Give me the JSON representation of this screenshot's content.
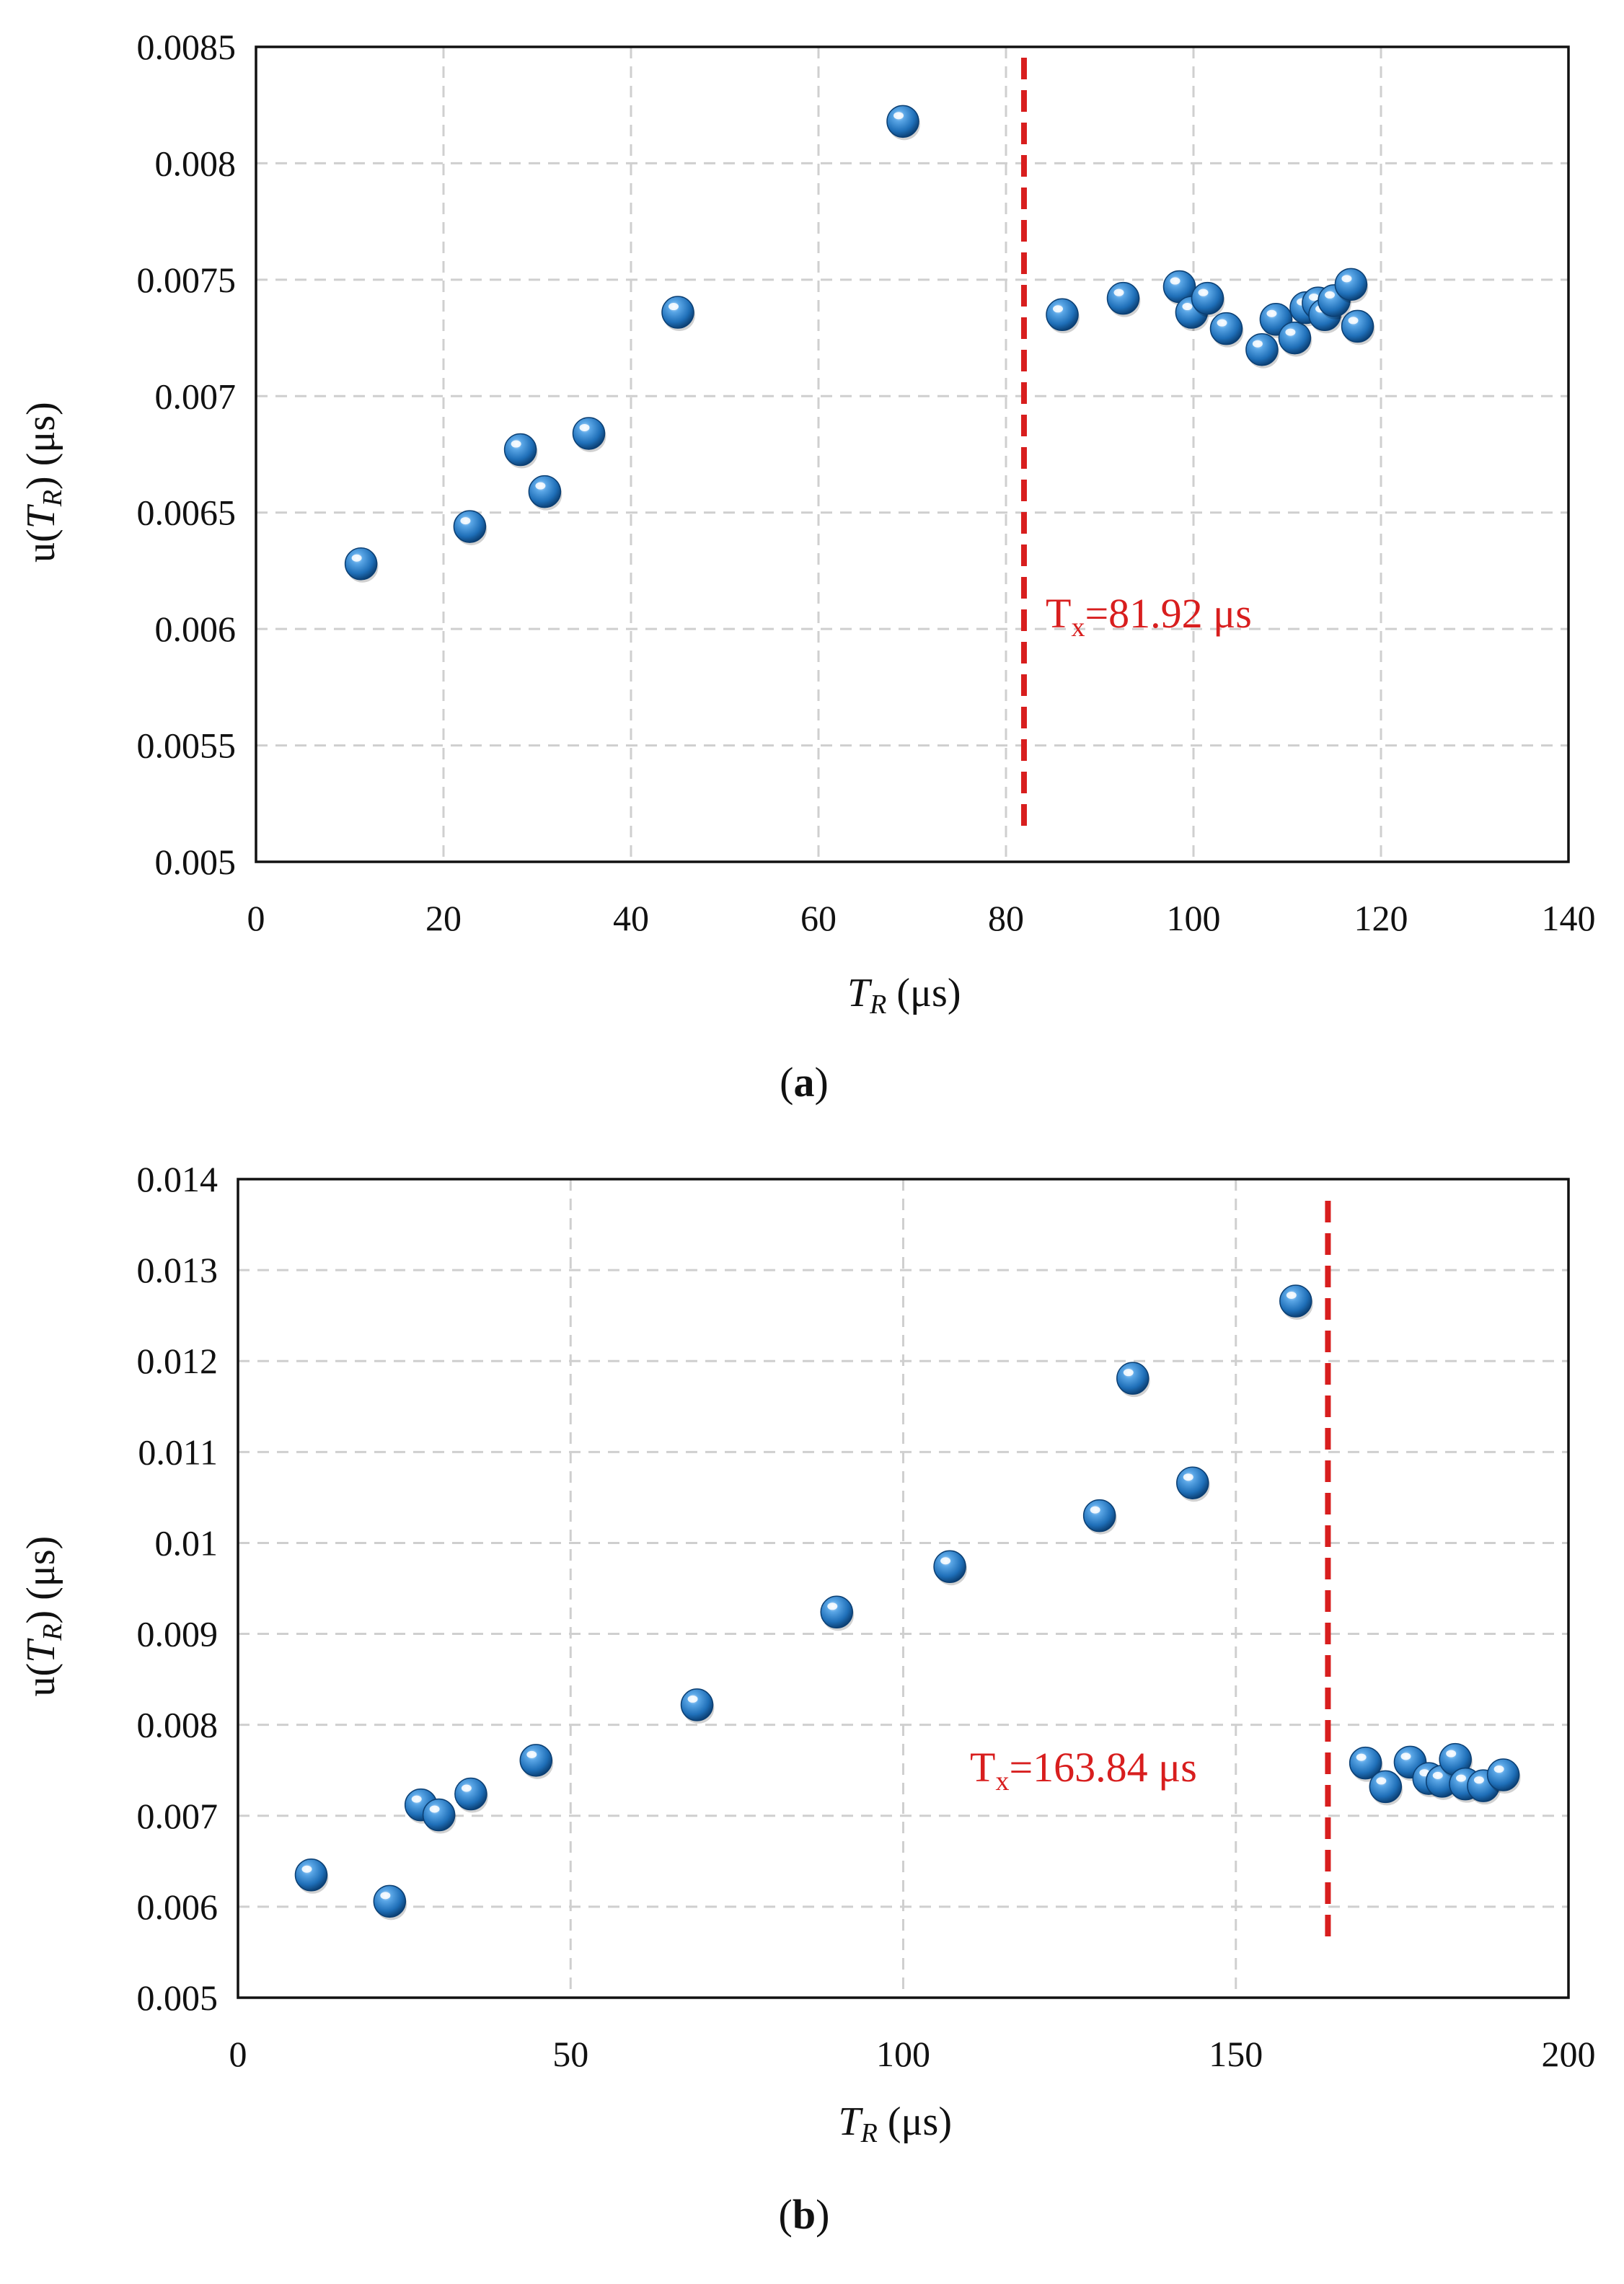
{
  "colors": {
    "marker": "#1f6fb8",
    "threshold": "#d81e1e",
    "grid": "#cfcfcf",
    "axis": "#111111"
  },
  "chart_data": [
    {
      "type": "scatter",
      "panel_label": "(a)",
      "panel_letter": "a",
      "xlabel": "T_R (μs)",
      "ylabel": "u(T_R) (μs)",
      "xlim": [
        0,
        140
      ],
      "ylim": [
        0.005,
        0.0085
      ],
      "x_ticks": [
        0,
        20,
        40,
        60,
        80,
        100,
        120,
        140
      ],
      "x_tick_labels": [
        "0",
        "20",
        "40",
        "60",
        "80",
        "100",
        "120",
        "140"
      ],
      "y_ticks": [
        0.005,
        0.0055,
        0.006,
        0.0065,
        0.007,
        0.0075,
        0.008,
        0.0085
      ],
      "y_tick_labels": [
        "0.005",
        "0.0055",
        "0.006",
        "0.0065",
        "0.007",
        "0.0075",
        "0.008",
        "0.0085"
      ],
      "grid": true,
      "threshold": {
        "x": 81.92,
        "label_main": "T",
        "label_sub": "x",
        "label_rest": "=81.92 μs"
      },
      "points": [
        {
          "x": 11.2,
          "y": 0.00628
        },
        {
          "x": 22.8,
          "y": 0.00644
        },
        {
          "x": 28.2,
          "y": 0.00677
        },
        {
          "x": 30.8,
          "y": 0.00659
        },
        {
          "x": 35.5,
          "y": 0.00684
        },
        {
          "x": 45.0,
          "y": 0.00736
        },
        {
          "x": 69.0,
          "y": 0.00818
        },
        {
          "x": 86.0,
          "y": 0.00735
        },
        {
          "x": 92.5,
          "y": 0.00742
        },
        {
          "x": 98.5,
          "y": 0.00747
        },
        {
          "x": 99.8,
          "y": 0.00736
        },
        {
          "x": 101.5,
          "y": 0.00742
        },
        {
          "x": 103.5,
          "y": 0.00729
        },
        {
          "x": 107.3,
          "y": 0.0072
        },
        {
          "x": 108.8,
          "y": 0.00733
        },
        {
          "x": 110.8,
          "y": 0.00725
        },
        {
          "x": 112.0,
          "y": 0.00738
        },
        {
          "x": 113.3,
          "y": 0.0074
        },
        {
          "x": 114.0,
          "y": 0.00735
        },
        {
          "x": 115.0,
          "y": 0.00741
        },
        {
          "x": 116.8,
          "y": 0.00748
        },
        {
          "x": 117.5,
          "y": 0.0073
        }
      ]
    },
    {
      "type": "scatter",
      "panel_label": "(b)",
      "panel_letter": "b",
      "xlabel": "T_R (μs)",
      "ylabel": "u(T_R) (μs)",
      "xlim": [
        0,
        200
      ],
      "ylim": [
        0.005,
        0.014
      ],
      "x_ticks": [
        0,
        50,
        100,
        150,
        200
      ],
      "x_tick_labels": [
        "0",
        "50",
        "100",
        "150",
        "200"
      ],
      "y_ticks": [
        0.005,
        0.006,
        0.007,
        0.008,
        0.009,
        0.01,
        0.011,
        0.012,
        0.013,
        0.014
      ],
      "y_tick_labels": [
        "0.005",
        "0.006",
        "0.007",
        "0.008",
        "0.009",
        "0.01",
        "0.011",
        "0.012",
        "0.013",
        "0.014"
      ],
      "grid": true,
      "threshold": {
        "x": 163.84,
        "label_main": "T",
        "label_sub": "x",
        "label_rest": "=163.84 μs"
      },
      "points": [
        {
          "x": 11.0,
          "y": 0.00635
        },
        {
          "x": 22.8,
          "y": 0.00606
        },
        {
          "x": 27.5,
          "y": 0.00712
        },
        {
          "x": 30.2,
          "y": 0.00701
        },
        {
          "x": 35.0,
          "y": 0.00724
        },
        {
          "x": 44.8,
          "y": 0.00761
        },
        {
          "x": 69.0,
          "y": 0.00822
        },
        {
          "x": 90.0,
          "y": 0.00924
        },
        {
          "x": 107.0,
          "y": 0.00974
        },
        {
          "x": 129.5,
          "y": 0.0103
        },
        {
          "x": 134.5,
          "y": 0.01181
        },
        {
          "x": 143.5,
          "y": 0.01066
        },
        {
          "x": 159.0,
          "y": 0.01266
        },
        {
          "x": 169.5,
          "y": 0.00758
        },
        {
          "x": 172.5,
          "y": 0.00732
        },
        {
          "x": 176.2,
          "y": 0.00759
        },
        {
          "x": 179.0,
          "y": 0.00741
        },
        {
          "x": 181.0,
          "y": 0.00738
        },
        {
          "x": 183.0,
          "y": 0.00762
        },
        {
          "x": 184.5,
          "y": 0.00735
        },
        {
          "x": 187.2,
          "y": 0.00733
        },
        {
          "x": 190.2,
          "y": 0.00745
        }
      ]
    }
  ]
}
